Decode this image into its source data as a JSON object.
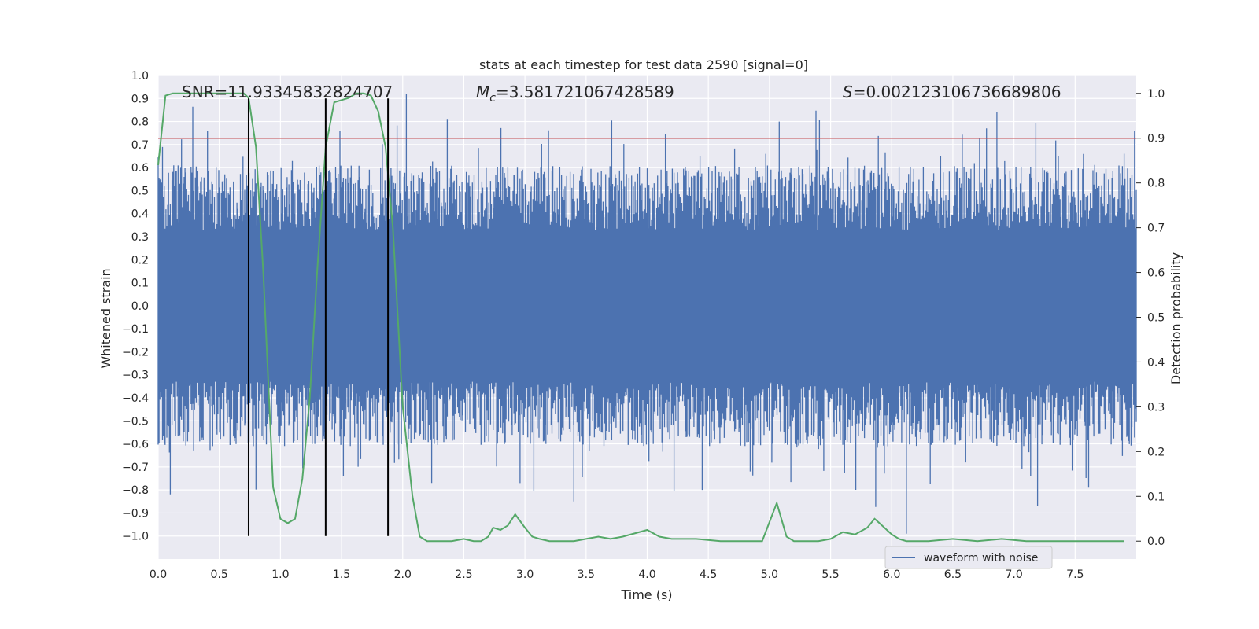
{
  "chart_data": {
    "type": "line",
    "title": "stats at each timestep for test data 2590 [signal=0]",
    "xlabel": "Time (s)",
    "ylabel": "Whitened strain",
    "y2label": "Detection probability",
    "xlim": [
      0.0,
      8.0
    ],
    "ylim": [
      -1.1,
      1.0
    ],
    "y2lim": [
      -0.04,
      1.04
    ],
    "x_ticks": [
      "0.0",
      "0.5",
      "1.0",
      "1.5",
      "2.0",
      "2.5",
      "3.0",
      "3.5",
      "4.0",
      "4.5",
      "5.0",
      "5.5",
      "6.0",
      "6.5",
      "7.0",
      "7.5"
    ],
    "y_ticks": [
      "1.0",
      "0.9",
      "0.8",
      "0.7",
      "0.6",
      "0.5",
      "0.4",
      "0.3",
      "0.2",
      "0.1",
      "0.0",
      "-0.1",
      "-0.2",
      "-0.3",
      "-0.4",
      "-0.5",
      "-0.6",
      "-0.7",
      "-0.8",
      "-0.9",
      "-1.0"
    ],
    "y2_ticks": [
      "1.0",
      "0.9",
      "0.8",
      "0.7",
      "0.6",
      "0.5",
      "0.4",
      "0.3",
      "0.2",
      "0.1",
      "0.0"
    ],
    "annotations": {
      "snr": "SNR=11.93345832824707",
      "mc_symbol": "M",
      "mc_sub": "c",
      "mc_value": "=3.581721067428589",
      "s_symbol": "S",
      "s_value": "=0.002123106736689806"
    },
    "threshold": {
      "y2": 0.9,
      "color": "#c44e52"
    },
    "vlines_x": [
      0.74,
      1.37,
      1.88
    ],
    "legend": [
      "waveform with noise"
    ],
    "colors": {
      "waveform": "#4c72b0",
      "probability": "#55a868",
      "threshold": "#c44e52",
      "vline": "#000000",
      "panel": "#eaeaf2"
    },
    "waveform": {
      "name": "waveform with noise",
      "core_amplitude": 0.33,
      "spike_positive_max": 0.9,
      "spike_negative_min": -0.99
    },
    "series": [
      {
        "name": "Detection probability",
        "x": [
          0.0,
          0.06,
          0.12,
          0.3,
          0.5,
          0.6,
          0.7,
          0.74,
          0.8,
          0.86,
          0.94,
          1.0,
          1.06,
          1.12,
          1.18,
          1.24,
          1.3,
          1.37,
          1.44,
          1.5,
          1.56,
          1.62,
          1.68,
          1.74,
          1.8,
          1.86,
          1.92,
          2.0,
          2.08,
          2.14,
          2.2,
          2.4,
          2.5,
          2.58,
          2.64,
          2.7,
          2.74,
          2.8,
          2.86,
          2.92,
          3.0,
          3.06,
          3.12,
          3.2,
          3.3,
          3.4,
          3.5,
          3.6,
          3.7,
          3.8,
          4.0,
          4.1,
          4.2,
          4.4,
          4.6,
          4.8,
          4.94,
          5.06,
          5.14,
          5.2,
          5.3,
          5.4,
          5.5,
          5.6,
          5.7,
          5.8,
          5.86,
          5.9,
          6.0,
          6.06,
          6.12,
          6.3,
          6.5,
          6.7,
          6.9,
          7.1,
          7.3,
          7.5,
          7.7,
          7.9
        ],
        "y": [
          0.84,
          0.995,
          1.0,
          1.0,
          1.0,
          1.0,
          1.0,
          0.99,
          0.88,
          0.6,
          0.12,
          0.05,
          0.04,
          0.05,
          0.14,
          0.32,
          0.6,
          0.88,
          0.98,
          0.985,
          0.99,
          1.0,
          1.0,
          0.995,
          0.96,
          0.88,
          0.7,
          0.3,
          0.1,
          0.01,
          0.0,
          0.0,
          0.005,
          0.0,
          0.0,
          0.01,
          0.03,
          0.025,
          0.035,
          0.06,
          0.03,
          0.01,
          0.005,
          0.0,
          0.0,
          0.0,
          0.005,
          0.01,
          0.005,
          0.01,
          0.025,
          0.01,
          0.005,
          0.005,
          0.0,
          0.0,
          0.0,
          0.085,
          0.01,
          0.0,
          0.0,
          0.0,
          0.005,
          0.02,
          0.015,
          0.03,
          0.05,
          0.04,
          0.015,
          0.005,
          0.0,
          0.0,
          0.005,
          0.0,
          0.005,
          0.0,
          0.0,
          0.0,
          0.0,
          0.0
        ]
      }
    ]
  }
}
